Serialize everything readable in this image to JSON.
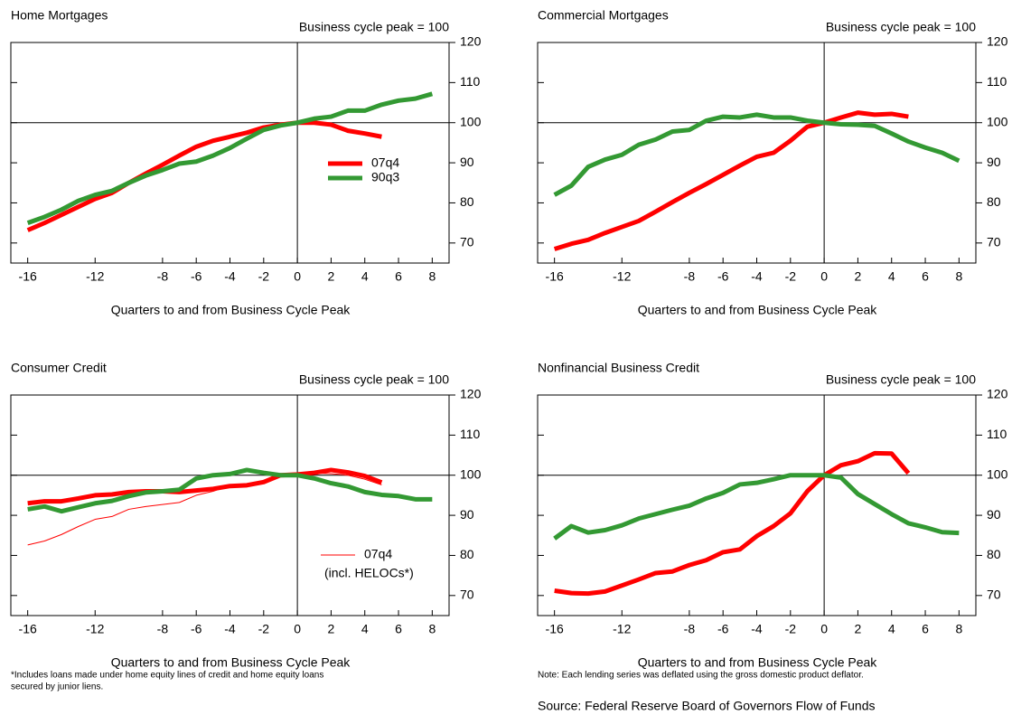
{
  "chart_data": [
    {
      "type": "line",
      "title": "Home Mortgages",
      "subtitle": "Business cycle peak = 100",
      "xlabel": "Quarters to and from Business Cycle Peak",
      "x": [
        -16,
        -15,
        -14,
        -13,
        -12,
        -11,
        -10,
        -9,
        -8,
        -7,
        -6,
        -5,
        -4,
        -3,
        -2,
        -1,
        0,
        1,
        2,
        3,
        4,
        5,
        6,
        7,
        8
      ],
      "xlim": [
        -17,
        9
      ],
      "xticks": [
        -16,
        -12,
        -8,
        -6,
        -4,
        -2,
        0,
        2,
        4,
        6,
        8
      ],
      "ylim": [
        65,
        120
      ],
      "yticks": [
        70,
        80,
        90,
        100,
        110,
        120
      ],
      "series": [
        {
          "name": "07q4",
          "color": "#ff0000",
          "values": [
            73.2,
            75,
            77,
            79,
            81,
            82.5,
            85,
            87.3,
            89.5,
            91.8,
            94,
            95.5,
            96.5,
            97.5,
            98.8,
            99.5,
            100,
            100,
            99.5,
            98,
            97.3,
            96.5,
            null,
            null,
            null
          ]
        },
        {
          "name": "90q3",
          "color": "#339933",
          "values": [
            75,
            76.5,
            78.3,
            80.5,
            82,
            83,
            85,
            86.8,
            88.2,
            89.8,
            90.3,
            91.8,
            93.7,
            96,
            98.2,
            99.3,
            100,
            101,
            101.5,
            103,
            103,
            104.5,
            105.5,
            106,
            107.2
          ]
        }
      ]
    },
    {
      "type": "line",
      "title": "Commercial Mortgages",
      "subtitle": "Business cycle peak = 100",
      "xlabel": "Quarters to and from Business Cycle Peak",
      "x": [
        -16,
        -15,
        -14,
        -13,
        -12,
        -11,
        -10,
        -9,
        -8,
        -7,
        -6,
        -5,
        -4,
        -3,
        -2,
        -1,
        0,
        1,
        2,
        3,
        4,
        5,
        6,
        7,
        8
      ],
      "xlim": [
        -17,
        9
      ],
      "xticks": [
        -16,
        -12,
        -8,
        -6,
        -4,
        -2,
        0,
        2,
        4,
        6,
        8
      ],
      "ylim": [
        65,
        120
      ],
      "yticks": [
        70,
        80,
        90,
        100,
        110,
        120
      ],
      "series": [
        {
          "color": "#ff0000",
          "values": [
            68.5,
            69.8,
            70.8,
            72.5,
            74,
            75.5,
            77.8,
            80.2,
            82.5,
            84.7,
            87,
            89.3,
            91.5,
            92.5,
            95.5,
            99,
            100,
            101.3,
            102.5,
            102,
            102.2,
            101.5,
            null,
            null,
            null
          ]
        },
        {
          "color": "#339933",
          "values": [
            82,
            84.3,
            89,
            90.8,
            92,
            94.5,
            95.8,
            97.8,
            98.2,
            100.5,
            101.5,
            101.3,
            102,
            101.3,
            101.3,
            100.5,
            100,
            99.6,
            99.5,
            99.2,
            97.3,
            95.3,
            93.8,
            92.5,
            90.5
          ]
        }
      ]
    },
    {
      "type": "line",
      "title": "Consumer Credit",
      "subtitle": "Business cycle peak = 100",
      "xlabel": "Quarters to and from Business Cycle Peak",
      "notes": [
        "*Includes loans made under home equity lines of credit and home equity loans",
        "secured by junior liens."
      ],
      "legend_note": "(incl. HELOCs*)",
      "x": [
        -16,
        -15,
        -14,
        -13,
        -12,
        -11,
        -10,
        -9,
        -8,
        -7,
        -6,
        -5,
        -4,
        -3,
        -2,
        -1,
        0,
        1,
        2,
        3,
        4,
        5,
        6,
        7,
        8
      ],
      "xlim": [
        -17,
        9
      ],
      "xticks": [
        -16,
        -12,
        -8,
        -6,
        -4,
        -2,
        0,
        2,
        4,
        6,
        8
      ],
      "ylim": [
        65,
        120
      ],
      "yticks": [
        70,
        80,
        90,
        100,
        110,
        120
      ],
      "series": [
        {
          "color": "#ff0000",
          "values": [
            93,
            93.5,
            93.5,
            94.2,
            95,
            95.2,
            95.8,
            96,
            96,
            95.8,
            96.2,
            96.6,
            97.3,
            97.5,
            98.3,
            100,
            100.2,
            100.6,
            101.3,
            100.7,
            99.8,
            98.2,
            null,
            null,
            null
          ]
        },
        {
          "name": "07q4",
          "color": "#ff0000",
          "thin": true,
          "values": [
            82.6,
            83.6,
            85.2,
            87.2,
            89,
            89.7,
            91.5,
            92.2,
            92.7,
            93.2,
            95,
            96,
            97.4,
            97.6,
            98.3,
            100,
            100.1,
            100.5,
            100.4,
            100,
            99,
            97.6,
            null,
            null,
            null
          ]
        },
        {
          "color": "#339933",
          "values": [
            91.5,
            92.2,
            91,
            92,
            93,
            93.6,
            94.8,
            95.7,
            96,
            96.4,
            99.2,
            100,
            100.3,
            101.3,
            100.6,
            100,
            100,
            99.2,
            98,
            97.2,
            95.8,
            95.1,
            94.8,
            94,
            94
          ]
        }
      ]
    },
    {
      "type": "line",
      "title": "Nonfinancial Business Credit",
      "subtitle": "Business cycle peak = 100",
      "xlabel": "Quarters to and from Business Cycle Peak",
      "notes": [
        "Note: Each lending series was deflated using the gross domestic product deflator.",
        "Source: Federal Reserve Board of Governors Flow of Funds"
      ],
      "x": [
        -16,
        -15,
        -14,
        -13,
        -12,
        -11,
        -10,
        -9,
        -8,
        -7,
        -6,
        -5,
        -4,
        -3,
        -2,
        -1,
        0,
        1,
        2,
        3,
        4,
        5,
        6,
        7,
        8
      ],
      "xlim": [
        -17,
        9
      ],
      "xticks": [
        -16,
        -12,
        -8,
        -6,
        -4,
        -2,
        0,
        2,
        4,
        6,
        8
      ],
      "ylim": [
        65,
        120
      ],
      "yticks": [
        70,
        80,
        90,
        100,
        110,
        120
      ],
      "series": [
        {
          "color": "#ff0000",
          "values": [
            71.2,
            70.6,
            70.5,
            71,
            72.5,
            74,
            75.6,
            76,
            77.6,
            78.8,
            80.8,
            81.5,
            84.8,
            87.3,
            90.5,
            96,
            100,
            102.5,
            103.5,
            105.5,
            105.4,
            100.5,
            null,
            null,
            null
          ]
        },
        {
          "color": "#339933",
          "values": [
            84.2,
            87.3,
            85.7,
            86.3,
            87.5,
            89.2,
            90.3,
            91.4,
            92.4,
            94.2,
            95.6,
            97.7,
            98.1,
            99,
            100,
            100,
            100,
            99.4,
            95.3,
            92.8,
            90.3,
            88,
            87,
            85.8,
            85.6
          ]
        }
      ]
    }
  ]
}
